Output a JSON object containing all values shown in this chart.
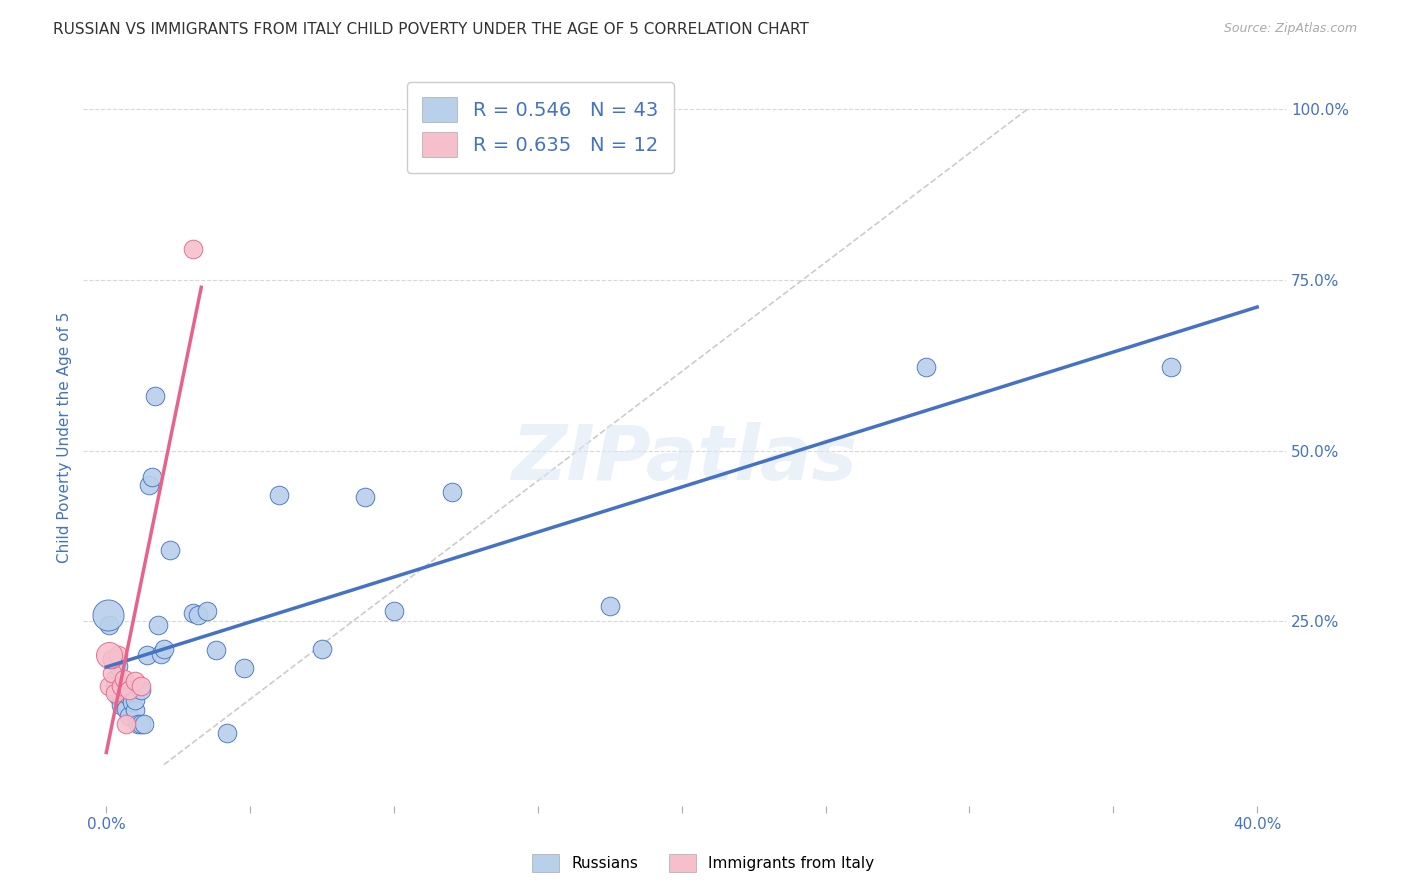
{
  "title": "RUSSIAN VS IMMIGRANTS FROM ITALY CHILD POVERTY UNDER THE AGE OF 5 CORRELATION CHART",
  "source": "Source: ZipAtlas.com",
  "ylabel": "Child Poverty Under the Age of 5",
  "ylabel_ticks": [
    "100.0%",
    "75.0%",
    "50.0%",
    "25.0%"
  ],
  "ylabel_tick_vals": [
    1.0,
    0.75,
    0.5,
    0.25
  ],
  "xlim": [
    -0.008,
    0.41
  ],
  "ylim": [
    -0.02,
    1.06
  ],
  "russians_R": 0.546,
  "russians_N": 43,
  "italy_R": 0.635,
  "italy_N": 12,
  "watermark": "ZIPatlas",
  "blue_color": "#b8d0ea",
  "pink_color": "#f5c0cc",
  "line_blue": "#4472c4",
  "line_pink": "#e8638a",
  "russians_x": [
    0.001,
    0.002,
    0.003,
    0.003,
    0.004,
    0.004,
    0.005,
    0.005,
    0.006,
    0.006,
    0.007,
    0.007,
    0.008,
    0.008,
    0.009,
    0.01,
    0.01,
    0.011,
    0.012,
    0.012,
    0.013,
    0.014,
    0.015,
    0.016,
    0.017,
    0.018,
    0.019,
    0.02,
    0.022,
    0.03,
    0.032,
    0.035,
    0.038,
    0.042,
    0.048,
    0.06,
    0.075,
    0.09,
    0.1,
    0.12,
    0.175,
    0.285,
    0.37
  ],
  "russians_y": [
    0.245,
    0.195,
    0.165,
    0.155,
    0.14,
    0.185,
    0.14,
    0.128,
    0.14,
    0.13,
    0.13,
    0.122,
    0.14,
    0.112,
    0.132,
    0.12,
    0.135,
    0.1,
    0.1,
    0.15,
    0.1,
    0.2,
    0.45,
    0.462,
    0.58,
    0.245,
    0.202,
    0.21,
    0.355,
    0.262,
    0.26,
    0.265,
    0.208,
    0.087,
    0.182,
    0.435,
    0.21,
    0.432,
    0.265,
    0.44,
    0.272,
    0.622,
    0.622
  ],
  "italy_x": [
    0.001,
    0.002,
    0.002,
    0.003,
    0.004,
    0.005,
    0.006,
    0.007,
    0.008,
    0.01,
    0.012,
    0.03
  ],
  "italy_y": [
    0.155,
    0.175,
    0.195,
    0.145,
    0.2,
    0.155,
    0.165,
    0.1,
    0.15,
    0.162,
    0.155,
    0.795
  ],
  "legend_entries": [
    "Russians",
    "Immigrants from Italy"
  ],
  "title_color": "#333333",
  "axis_label_color": "#4472c4",
  "tick_color": "#4472c4",
  "background_color": "#ffffff",
  "grid_color": "#d8d8d8",
  "xtick_minor_vals": [
    0.0,
    0.05,
    0.1,
    0.15,
    0.2,
    0.25,
    0.3,
    0.35,
    0.4
  ],
  "xtick_label_vals": [
    0.0,
    0.4
  ],
  "xtick_labels": [
    "0.0%",
    "40.0%"
  ]
}
